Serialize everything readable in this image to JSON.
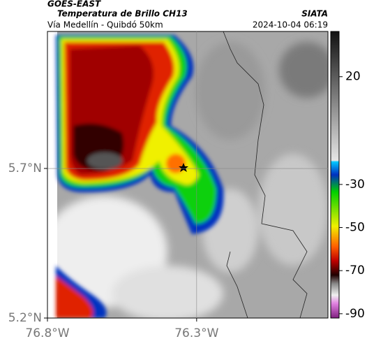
{
  "header": {
    "title": "GOES-EAST",
    "subtitle": "Temperatura de Brillo CH13",
    "region": "Vía Medellín - Quibdó 50km",
    "source": "SIATA",
    "datetime": "2024-10-04 06:19"
  },
  "map": {
    "xlim": [
      -76.8,
      -75.86
    ],
    "ylim": [
      5.2,
      6.158
    ],
    "xticks": [
      {
        "value": -76.8,
        "label": "76.8°W"
      },
      {
        "value": -76.3,
        "label": "76.3°W"
      }
    ],
    "yticks": [
      {
        "value": 5.2,
        "label": "5.2°N"
      },
      {
        "value": 5.7,
        "label": "5.7°N"
      }
    ]
  },
  "colorbar": {
    "lim": [
      -92,
      41
    ],
    "ticks": [
      20,
      -30,
      -50,
      -70,
      -90
    ]
  }
}
